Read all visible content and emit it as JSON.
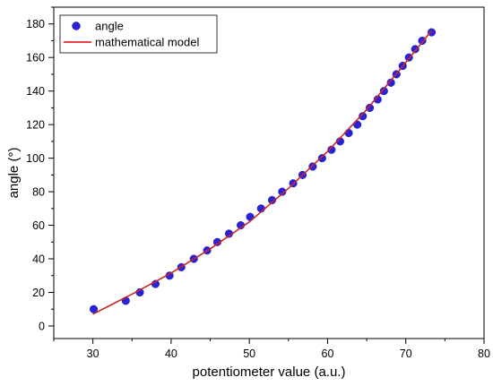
{
  "chart_data": {
    "type": "scatter",
    "xlabel": "potentiometer value (a.u.)",
    "ylabel": "angle (°)",
    "xlim": [
      25,
      80
    ],
    "ylim": [
      -7.5,
      190
    ],
    "x_ticks": [
      30,
      40,
      50,
      60,
      70,
      80
    ],
    "y_ticks": [
      0,
      20,
      40,
      60,
      80,
      100,
      120,
      140,
      160,
      180
    ],
    "grid": false,
    "legend_position": "top-left",
    "colors": {
      "points": "#2a22d8",
      "model": "#e8262b"
    },
    "series": [
      {
        "name": "angle",
        "kind": "scatter",
        "points": [
          [
            30.1,
            10
          ],
          [
            34.2,
            15
          ],
          [
            36.0,
            20
          ],
          [
            38.0,
            25
          ],
          [
            39.8,
            30
          ],
          [
            41.3,
            35
          ],
          [
            42.9,
            40
          ],
          [
            44.6,
            45
          ],
          [
            45.9,
            50
          ],
          [
            47.4,
            55
          ],
          [
            48.9,
            60
          ],
          [
            50.1,
            65
          ],
          [
            51.5,
            70
          ],
          [
            52.9,
            75
          ],
          [
            54.2,
            80
          ],
          [
            55.6,
            85
          ],
          [
            56.8,
            90
          ],
          [
            58.1,
            95
          ],
          [
            59.3,
            100
          ],
          [
            60.5,
            105
          ],
          [
            61.6,
            110
          ],
          [
            62.7,
            115
          ],
          [
            63.8,
            120
          ],
          [
            64.5,
            125
          ],
          [
            65.4,
            130
          ],
          [
            66.4,
            135
          ],
          [
            67.2,
            140
          ],
          [
            68.1,
            145
          ],
          [
            68.8,
            150
          ],
          [
            69.6,
            155
          ],
          [
            70.4,
            160
          ],
          [
            71.2,
            165
          ],
          [
            72.1,
            170
          ],
          [
            73.3,
            175
          ]
        ]
      },
      {
        "name": "mathematical model",
        "kind": "line",
        "points": [
          [
            30,
            7
          ],
          [
            35,
            19
          ],
          [
            40,
            31.5
          ],
          [
            45,
            46
          ],
          [
            50,
            62
          ],
          [
            55,
            82
          ],
          [
            60,
            104
          ],
          [
            65,
            129
          ],
          [
            70,
            157
          ],
          [
            73.3,
            176
          ]
        ]
      }
    ]
  }
}
